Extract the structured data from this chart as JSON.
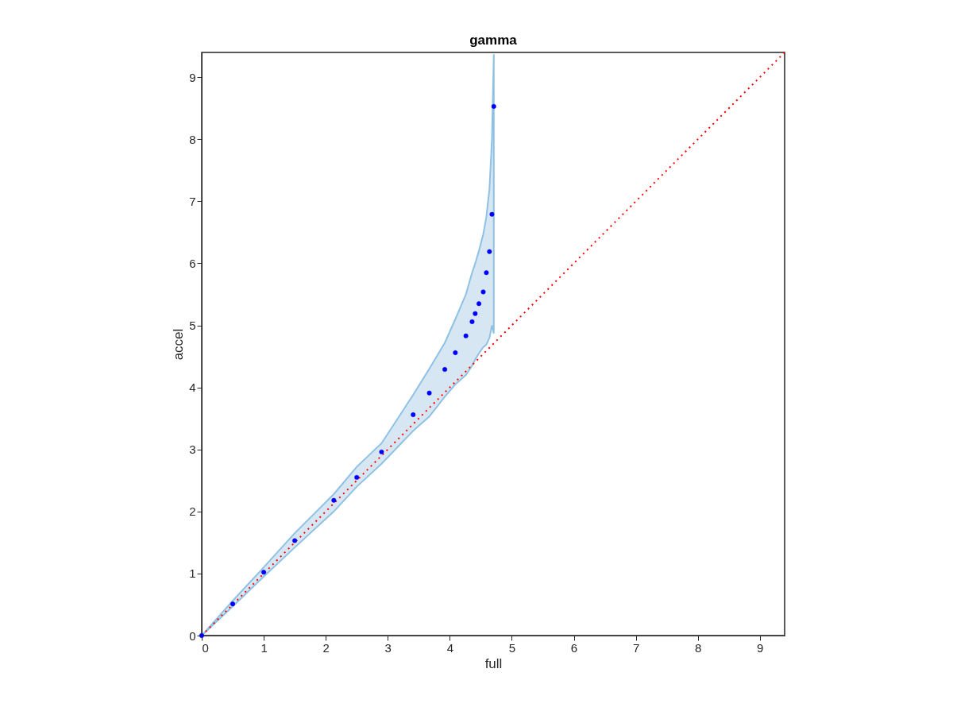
{
  "chart_data": {
    "type": "scatter",
    "title": "gamma",
    "xlabel": "full",
    "ylabel": "accel",
    "xlim": [
      0,
      9.4
    ],
    "ylim": [
      0,
      9.4
    ],
    "xticks": [
      0,
      1,
      2,
      3,
      4,
      5,
      6,
      7,
      8,
      9
    ],
    "yticks": [
      0,
      1,
      2,
      3,
      4,
      5,
      6,
      7,
      8,
      9
    ],
    "grid": false,
    "marker": "circle",
    "series": [
      {
        "type": "scatter",
        "color": "#0000ff",
        "x": [
          0,
          0.5,
          1,
          1.5,
          2.13,
          2.5,
          2.9,
          3.41,
          3.67,
          3.92,
          4.09,
          4.26,
          4.36,
          4.41,
          4.47,
          4.54,
          4.59,
          4.64,
          4.68,
          4.71
        ],
        "values": [
          0,
          0.51,
          1.02,
          1.53,
          2.18,
          2.55,
          2.96,
          3.56,
          3.91,
          4.29,
          4.56,
          4.83,
          5.06,
          5.19,
          5.35,
          5.54,
          5.85,
          6.19,
          6.79,
          8.53
        ],
        "lower": [
          0,
          0.47,
          0.95,
          1.42,
          2.0,
          2.4,
          2.77,
          3.3,
          3.53,
          3.85,
          4.05,
          4.2,
          4.35,
          4.45,
          4.55,
          4.65,
          4.69,
          4.8,
          5.0,
          4.87
        ],
        "upper": [
          0,
          0.56,
          1.1,
          1.65,
          2.28,
          2.72,
          3.1,
          3.88,
          4.3,
          4.72,
          5.1,
          5.5,
          5.85,
          6.0,
          6.2,
          6.47,
          6.75,
          7.2,
          8.0,
          9.37
        ]
      },
      {
        "type": "line",
        "color": "#ff0000",
        "line_style": "dotted",
        "marker": "none",
        "x": [
          0,
          9.4
        ],
        "values": [
          0,
          9.4
        ]
      }
    ]
  }
}
